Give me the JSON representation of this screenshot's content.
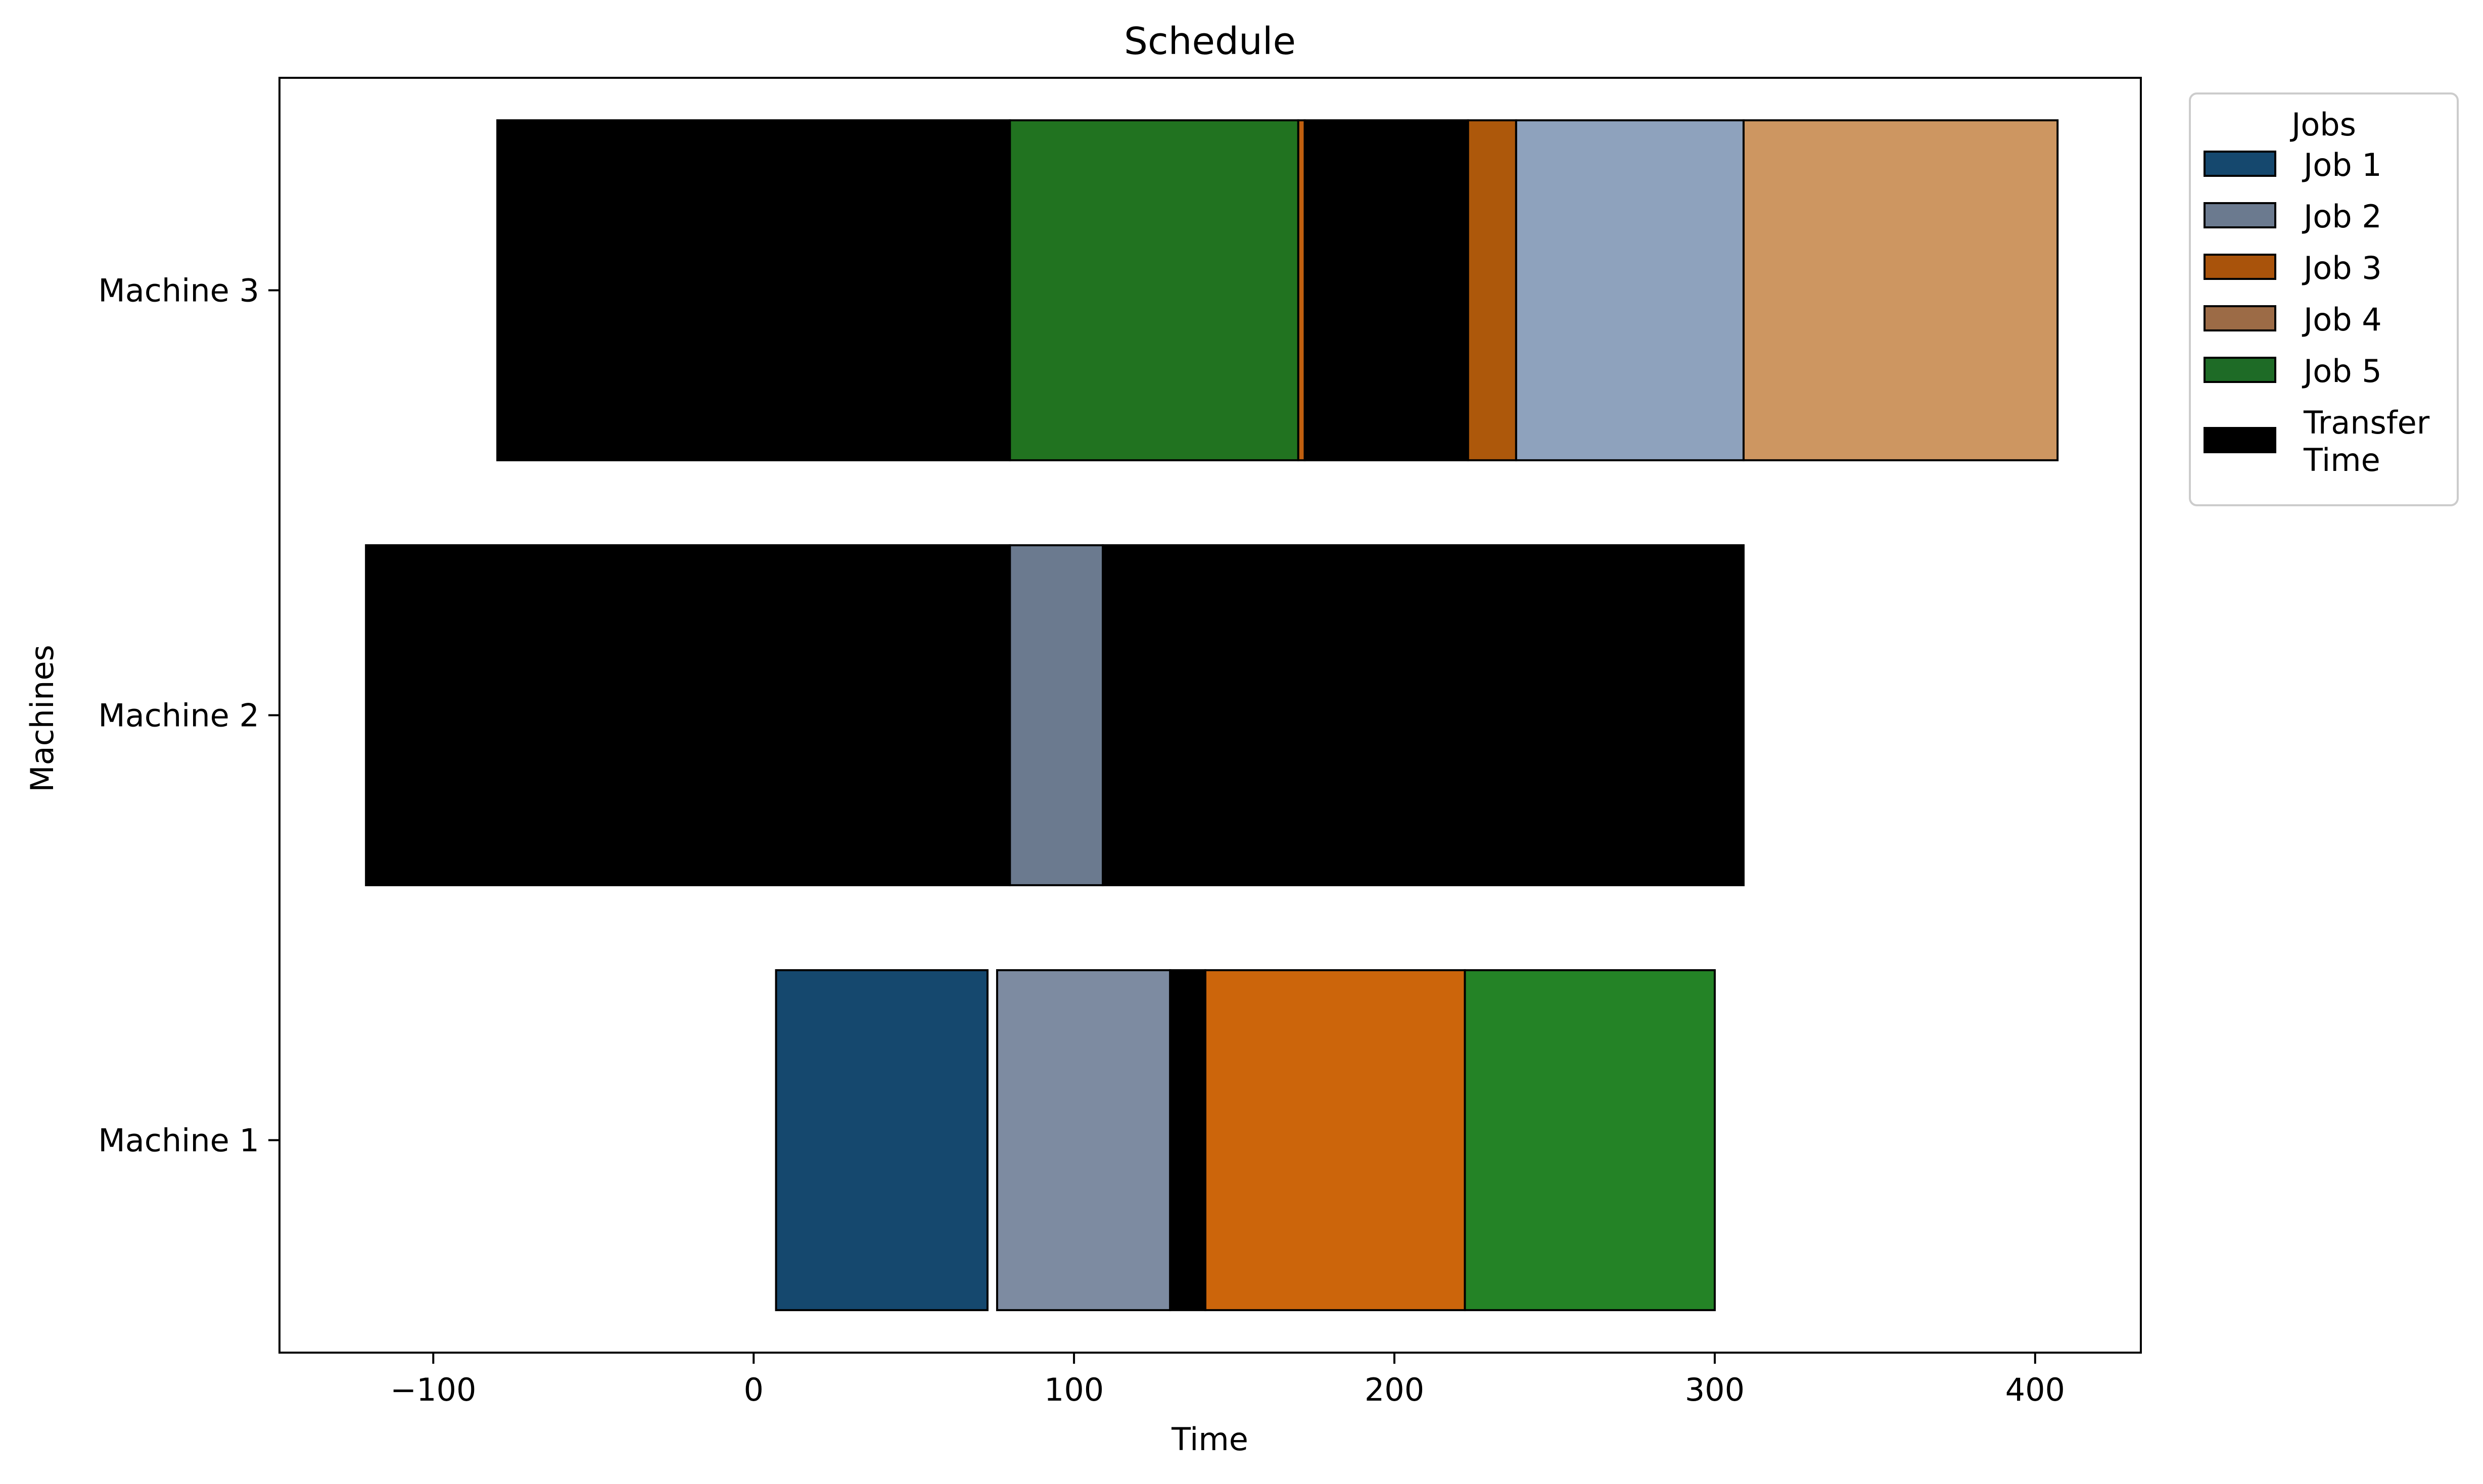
{
  "chart_data": {
    "type": "gantt",
    "title": "Schedule",
    "xlabel": "Time",
    "ylabel": "Machines",
    "xlim": [
      -148,
      433
    ],
    "xticks": [
      -100,
      0,
      100,
      200,
      300,
      400
    ],
    "xtick_labels": [
      "−100",
      "0",
      "100",
      "200",
      "300",
      "400"
    ],
    "machines": [
      "Machine 1",
      "Machine 2",
      "Machine 3"
    ],
    "legend": {
      "title": "Jobs",
      "placement": "outside-top-right",
      "entries": [
        {
          "label": "Job 1",
          "color": "#15486e"
        },
        {
          "label": "Job 2",
          "color": "#6b7a8f"
        },
        {
          "label": "Job 3",
          "color": "#a9530b"
        },
        {
          "label": "Job 4",
          "color": "#9c6b46"
        },
        {
          "label": "Job 5",
          "color": "#1e6b26"
        },
        {
          "label": "Transfer Time",
          "color": "#000000",
          "lines": [
            "Transfer",
            "Time"
          ]
        }
      ]
    },
    "tasks": [
      {
        "machine": "Machine 1",
        "job": "Job 1",
        "start": 7,
        "end": 73,
        "color": "#15486e"
      },
      {
        "machine": "Machine 1",
        "job": "Job 2",
        "start": 76,
        "end": 130,
        "color": "#7d8ba1"
      },
      {
        "machine": "Machine 1",
        "job": "Transfer Time",
        "start": 130,
        "end": 141,
        "color": "#000000"
      },
      {
        "machine": "Machine 1",
        "job": "Job 3",
        "start": 141,
        "end": 222,
        "color": "#cc650b"
      },
      {
        "machine": "Machine 1",
        "job": "Job 5",
        "start": 222,
        "end": 300,
        "color": "#248326"
      },
      {
        "machine": "Machine 2",
        "job": "Transfer Time",
        "start": -121,
        "end": 80,
        "color": "#000000"
      },
      {
        "machine": "Machine 2",
        "job": "Job 2",
        "start": 80,
        "end": 109,
        "color": "#6b7a8f"
      },
      {
        "machine": "Machine 2",
        "job": "Transfer Time",
        "start": 109,
        "end": 309,
        "color": "#000000"
      },
      {
        "machine": "Machine 3",
        "job": "Transfer Time",
        "start": -80,
        "end": 80,
        "color": "#000000"
      },
      {
        "machine": "Machine 3",
        "job": "Job 5",
        "start": 80,
        "end": 170,
        "color": "#217320"
      },
      {
        "machine": "Machine 3",
        "job": "Job 3",
        "start": 170,
        "end": 172,
        "color": "#c05f0f"
      },
      {
        "machine": "Machine 3",
        "job": "Transfer Time",
        "start": 172,
        "end": 223,
        "color": "#000000"
      },
      {
        "machine": "Machine 3",
        "job": "Job 3",
        "start": 223,
        "end": 238,
        "color": "#ad580b"
      },
      {
        "machine": "Machine 3",
        "job": "Job 2",
        "start": 238,
        "end": 309,
        "color": "#8ea2bd"
      },
      {
        "machine": "Machine 3",
        "job": "Job 4",
        "start": 309,
        "end": 407,
        "color": "#cd9661"
      }
    ]
  }
}
